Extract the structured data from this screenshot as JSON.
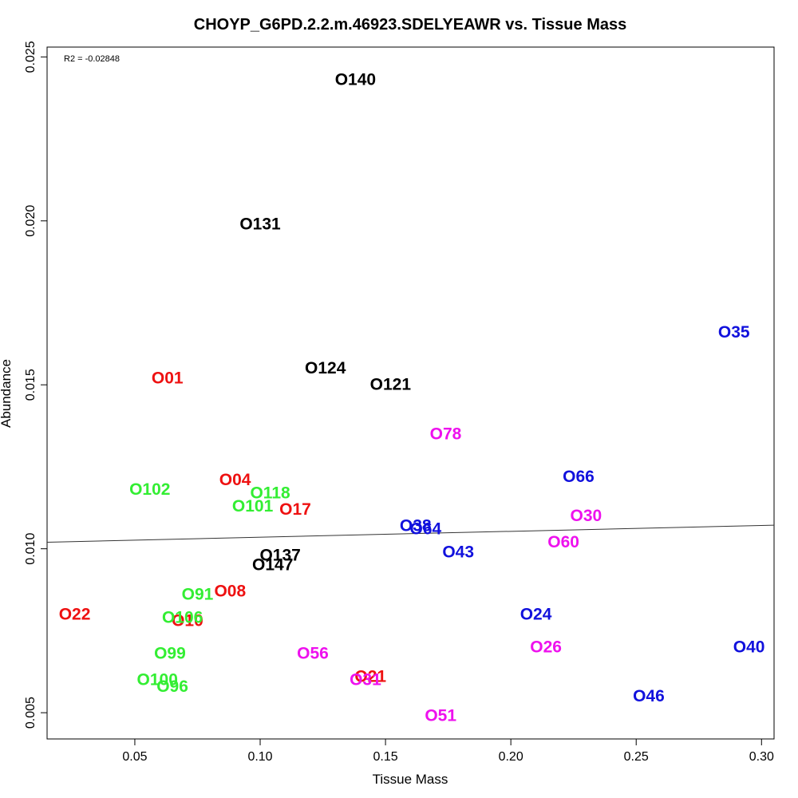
{
  "chart_data": {
    "type": "scatter",
    "title": "CHOYP_G6PD.2.2.m.46923.SDELYEAWR vs. Tissue Mass",
    "xlabel": "Tissue Mass",
    "ylabel": "Abundance",
    "annotation": "R2 = -0.02848",
    "xlim": [
      0.015,
      0.305
    ],
    "ylim": [
      0.0042,
      0.0253
    ],
    "x_ticks": [
      {
        "value": 0.05,
        "label": "0.05"
      },
      {
        "value": 0.1,
        "label": "0.10"
      },
      {
        "value": 0.15,
        "label": "0.15"
      },
      {
        "value": 0.2,
        "label": "0.20"
      },
      {
        "value": 0.25,
        "label": "0.25"
      },
      {
        "value": 0.3,
        "label": "0.30"
      }
    ],
    "y_ticks": [
      {
        "value": 0.005,
        "label": "0.005"
      },
      {
        "value": 0.01,
        "label": "0.010"
      },
      {
        "value": 0.015,
        "label": "0.015"
      },
      {
        "value": 0.02,
        "label": "0.020"
      },
      {
        "value": 0.025,
        "label": "0.025"
      }
    ],
    "regression_line": {
      "x": [
        0.015,
        0.305
      ],
      "y": [
        0.0102,
        0.01072
      ]
    },
    "grid": false,
    "legend": "none",
    "colors": {
      "red": "#ee1111",
      "green": "#33ee33",
      "black": "#000000",
      "magenta": "#ee11ee",
      "blue": "#1111dd"
    },
    "points": [
      {
        "label": "O140",
        "x": 0.138,
        "y": 0.0243,
        "color": "black"
      },
      {
        "label": "O131",
        "x": 0.1,
        "y": 0.0199,
        "color": "black"
      },
      {
        "label": "O124",
        "x": 0.126,
        "y": 0.0155,
        "color": "black"
      },
      {
        "label": "O121",
        "x": 0.152,
        "y": 0.015,
        "color": "black"
      },
      {
        "label": "O137",
        "x": 0.108,
        "y": 0.0098,
        "color": "black"
      },
      {
        "label": "O147",
        "x": 0.105,
        "y": 0.0095,
        "color": "black"
      },
      {
        "label": "O01",
        "x": 0.063,
        "y": 0.0152,
        "color": "red"
      },
      {
        "label": "O04",
        "x": 0.09,
        "y": 0.0121,
        "color": "red"
      },
      {
        "label": "O17",
        "x": 0.114,
        "y": 0.0112,
        "color": "red"
      },
      {
        "label": "O08",
        "x": 0.088,
        "y": 0.0087,
        "color": "red"
      },
      {
        "label": "O22",
        "x": 0.026,
        "y": 0.008,
        "color": "red"
      },
      {
        "label": "O10",
        "x": 0.071,
        "y": 0.0078,
        "color": "red"
      },
      {
        "label": "O21",
        "x": 0.144,
        "y": 0.0061,
        "color": "red"
      },
      {
        "label": "O102",
        "x": 0.056,
        "y": 0.0118,
        "color": "green"
      },
      {
        "label": "O118",
        "x": 0.104,
        "y": 0.0117,
        "color": "green"
      },
      {
        "label": "O101",
        "x": 0.097,
        "y": 0.0113,
        "color": "green"
      },
      {
        "label": "O91",
        "x": 0.075,
        "y": 0.0086,
        "color": "green"
      },
      {
        "label": "O106",
        "x": 0.069,
        "y": 0.0079,
        "color": "green"
      },
      {
        "label": "O99",
        "x": 0.064,
        "y": 0.0068,
        "color": "green"
      },
      {
        "label": "O100",
        "x": 0.059,
        "y": 0.006,
        "color": "green"
      },
      {
        "label": "O96",
        "x": 0.065,
        "y": 0.0058,
        "color": "green"
      },
      {
        "label": "O78",
        "x": 0.174,
        "y": 0.0135,
        "color": "magenta"
      },
      {
        "label": "O30",
        "x": 0.23,
        "y": 0.011,
        "color": "magenta"
      },
      {
        "label": "O60",
        "x": 0.221,
        "y": 0.0102,
        "color": "magenta"
      },
      {
        "label": "O26",
        "x": 0.214,
        "y": 0.007,
        "color": "magenta"
      },
      {
        "label": "O56",
        "x": 0.121,
        "y": 0.0068,
        "color": "magenta"
      },
      {
        "label": "O31",
        "x": 0.142,
        "y": 0.006,
        "color": "magenta"
      },
      {
        "label": "O51",
        "x": 0.172,
        "y": 0.0049,
        "color": "magenta"
      },
      {
        "label": "O35",
        "x": 0.289,
        "y": 0.0166,
        "color": "blue"
      },
      {
        "label": "O66",
        "x": 0.227,
        "y": 0.0122,
        "color": "blue"
      },
      {
        "label": "O38",
        "x": 0.162,
        "y": 0.0107,
        "color": "blue"
      },
      {
        "label": "O64",
        "x": 0.166,
        "y": 0.0106,
        "color": "blue"
      },
      {
        "label": "O43",
        "x": 0.179,
        "y": 0.0099,
        "color": "blue"
      },
      {
        "label": "O24",
        "x": 0.21,
        "y": 0.008,
        "color": "blue"
      },
      {
        "label": "O40",
        "x": 0.295,
        "y": 0.007,
        "color": "blue"
      },
      {
        "label": "O46",
        "x": 0.255,
        "y": 0.0055,
        "color": "blue"
      }
    ]
  }
}
